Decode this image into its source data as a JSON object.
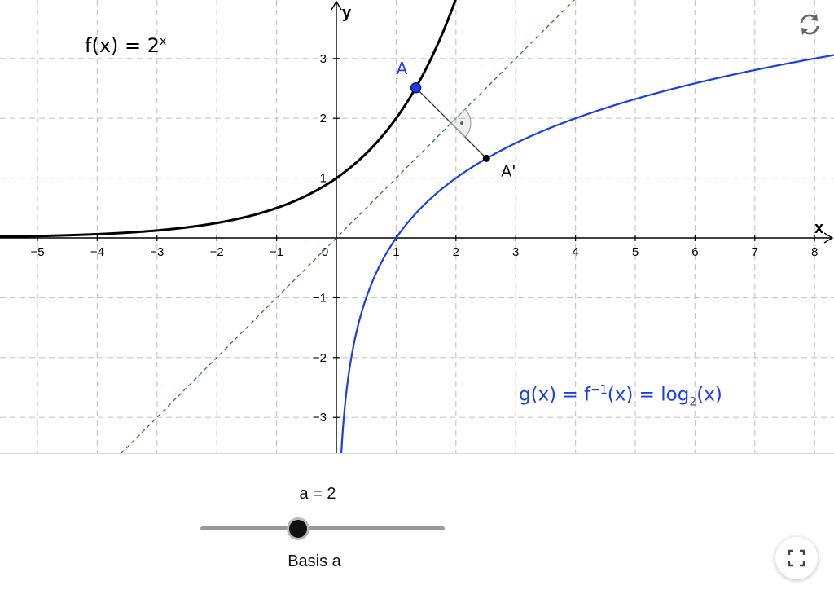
{
  "graph": {
    "x_ticks": [
      "−5",
      "−4",
      "−3",
      "−2",
      "−1",
      "0",
      "1",
      "2",
      "3",
      "4",
      "5",
      "6",
      "7",
      "8"
    ],
    "y_ticks": [
      "3",
      "2",
      "1",
      "−1",
      "−2",
      "−3"
    ],
    "x_axis_label": "x",
    "y_axis_label": "y",
    "f_label": {
      "lhs": "f(x) = 2",
      "sup": "x"
    },
    "g_label": {
      "a": "g(x) = f",
      "sup": "−1",
      "b": "(x) = log",
      "sub": "2",
      "c": "(x)"
    },
    "point_A": {
      "label": "A",
      "x": 1.33,
      "y": 2.51
    },
    "point_A_prime": {
      "label": "A'",
      "x": 2.51,
      "y": 1.33
    },
    "base": 2,
    "colors": {
      "f_curve": "#000000",
      "g_curve": "#1a3ee6",
      "mirror_line": "#2e7d2e",
      "grid": "#c8c8c8",
      "point_A": "#1a3ee6"
    }
  },
  "controls": {
    "slider_caption": "a = 2",
    "slider_label": "Basis a",
    "slider_value": 2,
    "reset_icon": "reset-icon",
    "fullscreen_icon": "fullscreen-icon"
  }
}
